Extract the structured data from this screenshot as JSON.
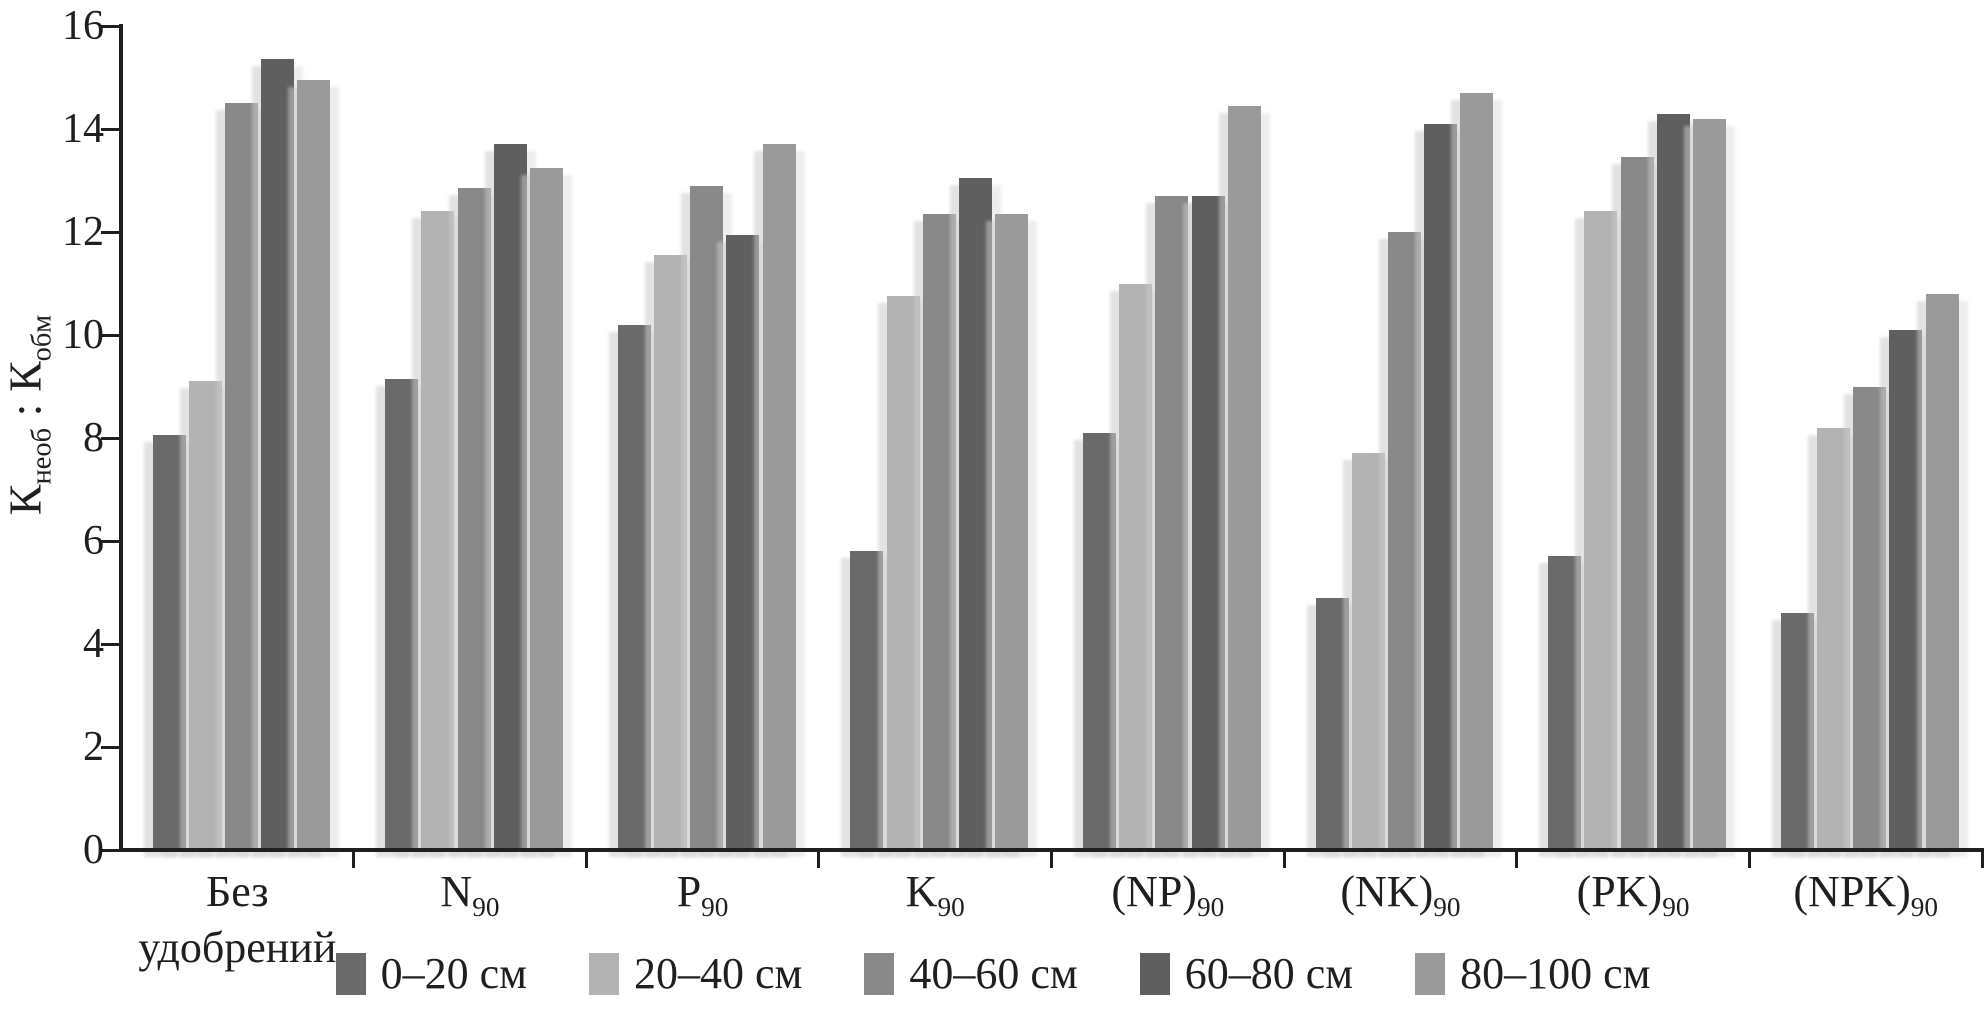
{
  "figure": {
    "background": "#ffffff",
    "text_color": "#1f1f1f"
  },
  "chart_data": {
    "type": "bar",
    "title": "",
    "xlabel": "",
    "ylabel": "Кнеоб : Кобм",
    "ylabel_rich": {
      "base1": "К",
      "sub1": "необ",
      "sep": " : ",
      "base2": "К",
      "sub2": "обм"
    },
    "ylim": [
      0,
      16
    ],
    "ytick_step": 2,
    "yticks": [
      0,
      2,
      4,
      6,
      8,
      10,
      12,
      14,
      16
    ],
    "grid": false,
    "legend_position": "bottom",
    "categories": [
      "Без удобрений",
      "N90",
      "P90",
      "K90",
      "(NP)90",
      "(NK)90",
      "(PK)90",
      "(NPK)90"
    ],
    "categories_rich": [
      {
        "line1": "Без",
        "line2": "удобрений"
      },
      {
        "base": "N",
        "sub": "90"
      },
      {
        "base": "P",
        "sub": "90"
      },
      {
        "base": "K",
        "sub": "90"
      },
      {
        "base": "(NP)",
        "sub": "90"
      },
      {
        "base": "(NK)",
        "sub": "90"
      },
      {
        "base": "(PK)",
        "sub": "90"
      },
      {
        "base": "(NPK)",
        "sub": "90"
      }
    ],
    "series": [
      {
        "name": "0–20 см",
        "color": "#6a6a6a",
        "values": [
          8.05,
          9.15,
          10.2,
          5.8,
          8.1,
          4.9,
          5.7,
          4.6
        ]
      },
      {
        "name": "20–40 см",
        "color": "#b3b3b3",
        "values": [
          9.1,
          12.4,
          11.55,
          10.75,
          11.0,
          7.7,
          12.4,
          8.2
        ]
      },
      {
        "name": "40–60 см",
        "color": "#898989",
        "values": [
          14.5,
          12.85,
          12.9,
          12.35,
          12.7,
          12.0,
          13.45,
          9.0
        ]
      },
      {
        "name": "60–80 см",
        "color": "#5f5f5f",
        "values": [
          15.35,
          13.7,
          11.95,
          13.05,
          12.7,
          14.1,
          14.3,
          10.1
        ]
      },
      {
        "name": "80–100 см",
        "color": "#9a9a9a",
        "values": [
          14.95,
          13.25,
          13.7,
          12.35,
          14.45,
          14.7,
          14.2,
          10.8
        ]
      }
    ]
  }
}
